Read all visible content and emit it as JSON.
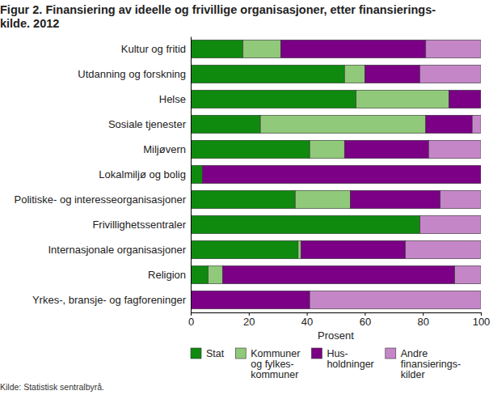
{
  "chart_data": {
    "type": "bar",
    "orientation": "horizontal",
    "stacked": true,
    "title": [
      "Figur 2. Finansiering av ideelle og frivillige organisasjoner, etter finansierings-",
      "kilde. 2012"
    ],
    "x_label": "Prosent",
    "source": "Kilde: Statistisk sentralbyrå.",
    "categories": [
      "Kultur og fritid",
      "Utdanning og forskning",
      "Helse",
      "Sosiale tjenester",
      "Miljøvern",
      "Lokalmiljø og bolig",
      "Politiske- og interesseorganisasjoner",
      "Frivillighetssentraler",
      "Internasjonale organisasjoner",
      "Religion",
      "Yrkes-, bransje- og fagforeninger"
    ],
    "series": [
      {
        "name": "Stat",
        "color": "#0f8a0f",
        "values": [
          18,
          53,
          57,
          24,
          41,
          4,
          36,
          79,
          37,
          6,
          0
        ]
      },
      {
        "name": "Kommuner\nog fylkes-\nkommuner",
        "color": "#90c97a",
        "values": [
          13,
          7,
          32,
          57,
          12,
          0,
          19,
          0,
          1,
          5,
          0
        ]
      },
      {
        "name": "Hus-\nholdninger",
        "color": "#7b0085",
        "values": [
          50,
          19,
          11,
          16,
          29,
          96,
          31,
          0,
          36,
          80,
          41
        ]
      },
      {
        "name": "Andre\nfinansierings-\nkilder",
        "color": "#c586c8",
        "values": [
          19,
          21,
          0,
          3,
          18,
          0,
          14,
          21,
          26,
          9,
          59
        ]
      }
    ],
    "xlim": [
      0,
      100
    ],
    "xticks": [
      0,
      20,
      40,
      60,
      80,
      100
    ],
    "grid": false,
    "legend": "bottom"
  }
}
